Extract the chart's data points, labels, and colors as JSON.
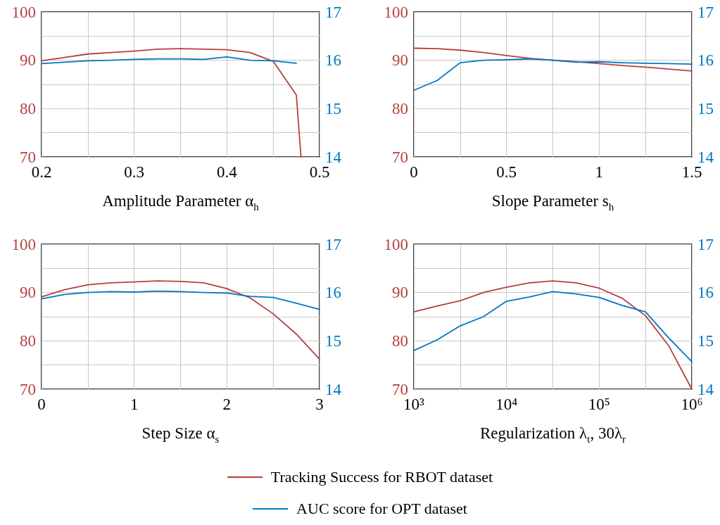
{
  "chart_data": [
    {
      "type": "line",
      "xlabel": "Amplitude Parameter α$_{h}$",
      "x": [
        0.2,
        0.225,
        0.25,
        0.275,
        0.3,
        0.325,
        0.35,
        0.375,
        0.4,
        0.425,
        0.45,
        0.475,
        0.48
      ],
      "series": [
        {
          "color": "#b5403f",
          "values": [
            89.9,
            90.6,
            91.3,
            91.6,
            91.9,
            92.3,
            92.4,
            92.3,
            92.2,
            91.6,
            89.8,
            82.8,
            70
          ]
        },
        {
          "color": "#0077c2",
          "axis": "y2",
          "values": [
            15.93,
            15.96,
            15.99,
            16.0,
            16.02,
            16.03,
            16.03,
            16.02,
            16.07,
            16.0,
            15.99,
            15.94,
            null
          ]
        }
      ],
      "xlim": [
        0.2,
        0.5
      ],
      "xticks": [
        0.2,
        {
          "value": 0.25,
          "label": null
        },
        0.3,
        {
          "value": 0.35,
          "label": null
        },
        0.4,
        {
          "value": 0.45,
          "label": null
        },
        0.5
      ],
      "ylim": [
        70,
        100
      ],
      "yticks": [
        70,
        {
          "value": 75,
          "label": null
        },
        80,
        {
          "value": 85,
          "label": null
        },
        90,
        {
          "value": 95,
          "label": null
        },
        100
      ],
      "y2lim": [
        14,
        17
      ],
      "y2ticks": [
        14,
        15,
        16,
        17
      ],
      "grid": true
    },
    {
      "type": "line",
      "xlabel": "Slope Parameter s$_{h}$",
      "x": [
        0,
        0.125,
        0.25,
        0.375,
        0.5,
        0.625,
        0.75,
        0.875,
        1,
        1.125,
        1.25,
        1.375,
        1.5
      ],
      "series": [
        {
          "color": "#b5403f",
          "values": [
            92.5,
            92.4,
            92.1,
            91.6,
            91.0,
            90.4,
            90.0,
            89.7,
            89.3,
            88.9,
            88.6,
            88.2,
            87.8
          ]
        },
        {
          "color": "#0077c2",
          "axis": "y2",
          "values": [
            15.38,
            15.58,
            15.95,
            16.0,
            16.01,
            16.03,
            16.0,
            15.96,
            15.97,
            15.95,
            15.94,
            15.93,
            15.92
          ]
        }
      ],
      "xlim": [
        0,
        1.5
      ],
      "xticks": [
        0,
        {
          "value": 0.25,
          "label": null
        },
        0.5,
        {
          "value": 0.75,
          "label": null
        },
        1,
        {
          "value": 1.25,
          "label": null
        },
        1.5
      ],
      "ylim": [
        70,
        100
      ],
      "yticks": [
        70,
        {
          "value": 75,
          "label": null
        },
        80,
        {
          "value": 85,
          "label": null
        },
        90,
        {
          "value": 95,
          "label": null
        },
        100
      ],
      "y2lim": [
        14,
        17
      ],
      "y2ticks": [
        14,
        15,
        16,
        17
      ],
      "grid": true
    },
    {
      "type": "line",
      "xlabel": "Step Size α$_{s}$",
      "x": [
        0,
        0.25,
        0.5,
        0.75,
        1,
        1.25,
        1.5,
        1.75,
        2,
        2.25,
        2.5,
        2.75,
        3
      ],
      "series": [
        {
          "color": "#b5403f",
          "values": [
            89.1,
            90.6,
            91.6,
            92.0,
            92.2,
            92.4,
            92.3,
            92.0,
            90.8,
            88.9,
            85.6,
            81.4,
            76.2
          ]
        },
        {
          "color": "#0077c2",
          "axis": "y2",
          "values": [
            15.87,
            15.96,
            16.0,
            16.02,
            16.01,
            16.03,
            16.02,
            16.0,
            15.99,
            15.92,
            15.9,
            15.78,
            15.65
          ]
        }
      ],
      "xlim": [
        0,
        3
      ],
      "xticks": [
        0,
        {
          "value": 0.5,
          "label": null
        },
        1,
        {
          "value": 1.5,
          "label": null
        },
        2,
        {
          "value": 2.5,
          "label": null
        },
        3
      ],
      "ylim": [
        70,
        100
      ],
      "yticks": [
        70,
        {
          "value": 75,
          "label": null
        },
        80,
        {
          "value": 85,
          "label": null
        },
        90,
        {
          "value": 95,
          "label": null
        },
        100
      ],
      "y2lim": [
        14,
        17
      ],
      "y2ticks": [
        14,
        15,
        16,
        17
      ],
      "grid": true
    },
    {
      "type": "line",
      "xlabel": "Regularization λ$_{t}$, 30λ$_{r}$",
      "log": "x",
      "x": [
        1000,
        1778,
        3162,
        5623,
        10000,
        17783,
        31623,
        56234,
        100000,
        177828,
        316228,
        562341,
        1000000
      ],
      "series": [
        {
          "name": "Tracking Success for RBOT dataset",
          "color": "#b5403f",
          "values": [
            86.0,
            87.2,
            88.3,
            90.0,
            91.1,
            92.0,
            92.4,
            92.0,
            90.9,
            88.8,
            85.2,
            79.0,
            70
          ]
        },
        {
          "name": "AUC score for OPT dataset",
          "color": "#0077c2",
          "axis": "y2",
          "values": [
            14.8,
            15.02,
            15.31,
            15.5,
            15.82,
            15.91,
            16.02,
            15.97,
            15.9,
            15.73,
            15.6,
            15.06,
            14.57
          ]
        }
      ],
      "xlim": [
        1000,
        1000000
      ],
      "xticks": [
        {
          "value": 1000,
          "label": "10³"
        },
        {
          "value": 3162,
          "label": null
        },
        {
          "value": 10000,
          "label": "10⁴"
        },
        {
          "value": 31623,
          "label": null
        },
        {
          "value": 100000,
          "label": "10⁵"
        },
        {
          "value": 316228,
          "label": null
        },
        {
          "value": 1000000,
          "label": "10⁶"
        }
      ],
      "ylim": [
        70,
        100
      ],
      "yticks": [
        70,
        {
          "value": 75,
          "label": null
        },
        80,
        {
          "value": 85,
          "label": null
        },
        90,
        {
          "value": 95,
          "label": null
        },
        100
      ],
      "y2lim": [
        14,
        17
      ],
      "y2ticks": [
        14,
        15,
        16,
        17
      ],
      "grid": true,
      "legend": "bottom"
    }
  ]
}
